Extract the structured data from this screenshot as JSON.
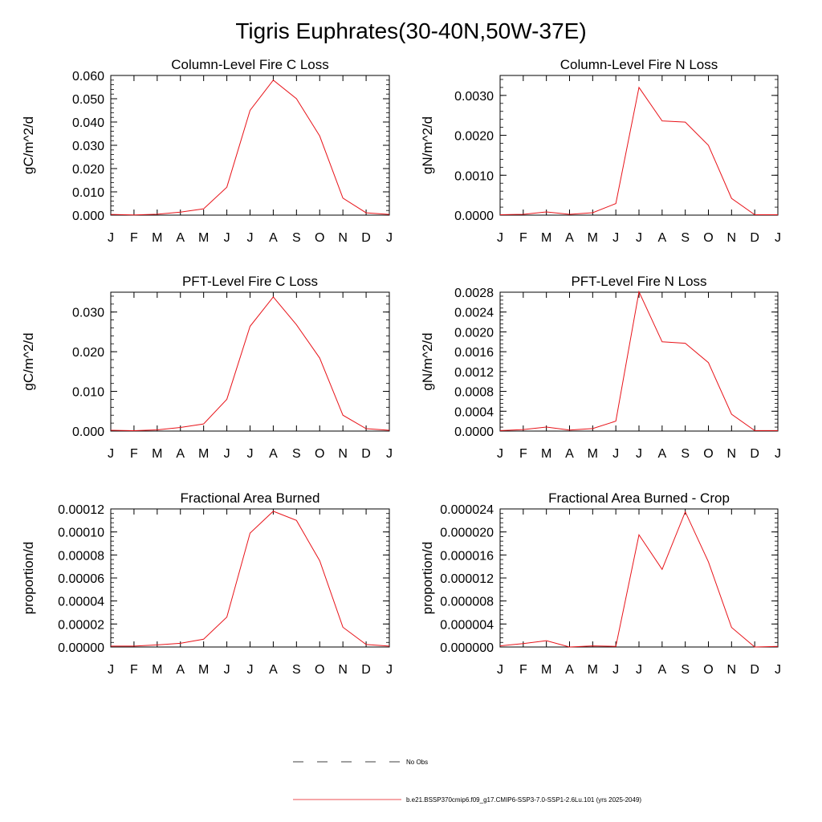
{
  "main_title": "Tigris Euphrates(30-40N,50W-37E)",
  "months": [
    "J",
    "F",
    "M",
    "A",
    "M",
    "J",
    "J",
    "A",
    "S",
    "O",
    "N",
    "D",
    "J"
  ],
  "legend": {
    "obs_label": "No Obs",
    "model_label": "b.e21.BSSP370cmip6.f09_g17.CMIP6-SSP3-7.0-SSP1-2.6Lu.101 (yrs 2025-2049)"
  },
  "colors": {
    "model_line": "#e8141a",
    "axis": "#000000",
    "obs_line": "#000000"
  },
  "chart_data": [
    {
      "type": "line",
      "title": "Column-Level Fire C Loss",
      "ylabel": "gC/m^2/d",
      "ylim": [
        0,
        0.06
      ],
      "yticks": [
        0,
        0.01,
        0.02,
        0.03,
        0.04,
        0.05,
        0.06
      ],
      "ytick_labels": [
        "0.000",
        "0.010",
        "0.020",
        "0.030",
        "0.040",
        "0.050",
        "0.060"
      ],
      "values": [
        0.0003,
        0.0001,
        0.0004,
        0.0013,
        0.0027,
        0.012,
        0.045,
        0.058,
        0.05,
        0.034,
        0.0073,
        0.001,
        0.0003
      ]
    },
    {
      "type": "line",
      "title": "Column-Level Fire N Loss",
      "ylabel": "gN/m^2/d",
      "ylim": [
        0,
        0.0035
      ],
      "yticks": [
        0,
        0.001,
        0.002,
        0.003
      ],
      "ytick_labels": [
        "0.0000",
        "0.0010",
        "0.0020",
        "0.0030"
      ],
      "values": [
        1e-05,
        2e-05,
        8e-05,
        2e-05,
        6e-05,
        0.00029,
        0.0032,
        0.00236,
        0.00233,
        0.00175,
        0.00042,
        1e-05,
        1e-05
      ]
    },
    {
      "type": "line",
      "title": "PFT-Level Fire C Loss",
      "ylabel": "gC/m^2/d",
      "ylim": [
        0,
        0.035
      ],
      "yticks": [
        0,
        0.01,
        0.02,
        0.03
      ],
      "ytick_labels": [
        "0.000",
        "0.010",
        "0.020",
        "0.030"
      ],
      "values": [
        0.0002,
        0.0001,
        0.0003,
        0.0009,
        0.0018,
        0.008,
        0.0264,
        0.0338,
        0.0268,
        0.0184,
        0.004,
        0.0006,
        0.0002
      ]
    },
    {
      "type": "line",
      "title": "PFT-Level Fire N Loss",
      "ylabel": "gN/m^2/d",
      "ylim": [
        0,
        0.0028
      ],
      "yticks": [
        0,
        0.0004,
        0.0008,
        0.0012,
        0.0016,
        0.002,
        0.0024,
        0.0028
      ],
      "ytick_labels": [
        "0.0000",
        "0.0004",
        "0.0008",
        "0.0012",
        "0.0016",
        "0.0020",
        "0.0024",
        "0.0028"
      ],
      "values": [
        1e-05,
        3e-05,
        8e-05,
        2e-05,
        5e-05,
        0.0002,
        0.00281,
        0.0018,
        0.00177,
        0.00138,
        0.00034,
        1e-05,
        1e-05
      ]
    },
    {
      "type": "line",
      "title": "Fractional Area Burned",
      "ylabel": "proportion/d",
      "ylim": [
        0,
        0.00012
      ],
      "yticks": [
        0,
        2e-05,
        4e-05,
        6e-05,
        8e-05,
        0.0001,
        0.00012
      ],
      "ytick_labels": [
        "0.00000",
        "0.00002",
        "0.00004",
        "0.00006",
        "0.00008",
        "0.00010",
        "0.00012"
      ],
      "values": [
        8e-07,
        8e-07,
        1.8e-06,
        3.2e-06,
        6.8e-06,
        2.6e-05,
        9.9e-05,
        0.000118,
        0.00011,
        7.5e-05,
        1.72e-05,
        2.2e-06,
        8e-07
      ]
    },
    {
      "type": "line",
      "title": "Fractional Area Burned - Crop",
      "ylabel": "proportion/d",
      "ylim": [
        0,
        2.4e-05
      ],
      "yticks": [
        0,
        4e-06,
        8e-06,
        1.2e-05,
        1.6e-05,
        2e-05,
        2.4e-05
      ],
      "ytick_labels": [
        "0.000000",
        "0.000004",
        "0.000008",
        "0.000012",
        "0.000016",
        "0.000020",
        "0.000024"
      ],
      "values": [
        2e-07,
        6e-07,
        1.1e-06,
        0.0,
        2e-07,
        1e-07,
        1.95e-05,
        1.35e-05,
        2.35e-05,
        1.48e-05,
        3.4e-06,
        0.0,
        1e-07
      ]
    }
  ]
}
